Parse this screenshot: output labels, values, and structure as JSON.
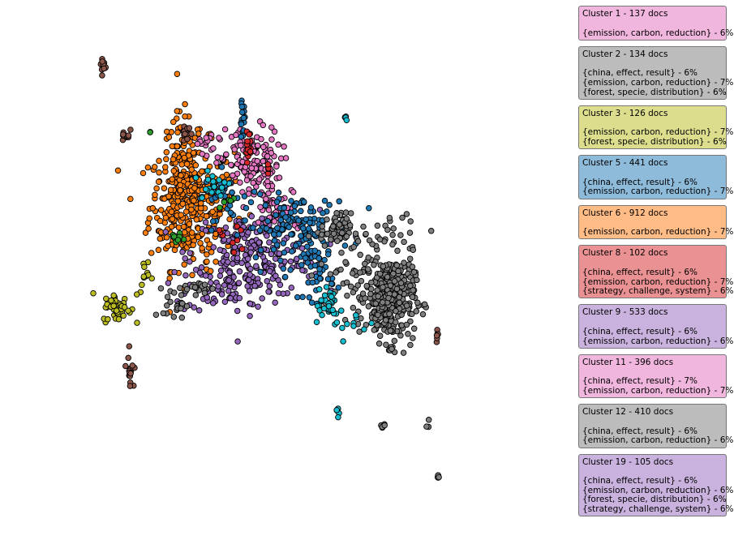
{
  "chart_data": {
    "type": "scatter",
    "title": "",
    "xlabel": "",
    "ylabel": "",
    "grid": false,
    "axes_visible": false,
    "xlim": [
      0,
      100
    ],
    "ylim": [
      0,
      100
    ],
    "legend_placement": "right",
    "point_style": {
      "size": 3.3,
      "edge_color": "#000000"
    },
    "cluster_colors": {
      "blue": "#1f77b4",
      "orange": "#ff7f0e",
      "green": "#2ca02c",
      "red": "#d62728",
      "purple": "#9467bd",
      "brown": "#8c564b",
      "pink": "#e377c2",
      "gray": "#7f7f7f",
      "olive": "#bcbd22",
      "cyan": "#17becf"
    },
    "clusters": [
      {
        "color": "orange",
        "n": 300,
        "cx": 26.8,
        "cy": 64.0,
        "sx": 4.2,
        "sy": 6.3
      },
      {
        "color": "orange",
        "n": 130,
        "cx": 24.9,
        "cy": 69.5,
        "sx": 2.2,
        "sy": 6.5
      },
      {
        "color": "purple",
        "n": 240,
        "cx": 39.6,
        "cy": 54.4,
        "sx": 6.3,
        "sy": 4.4
      },
      {
        "color": "purple",
        "n": 60,
        "cx": 34.4,
        "cy": 47.9,
        "sx": 4.2,
        "sy": 2.6
      },
      {
        "color": "pink",
        "n": 150,
        "cx": 38.5,
        "cy": 72.3,
        "sx": 3.0,
        "sy": 3.8
      },
      {
        "color": "pink",
        "n": 40,
        "cx": 44.4,
        "cy": 62.9,
        "sx": 2.7,
        "sy": 2.4
      },
      {
        "color": "pink",
        "n": 14,
        "cx": 29.4,
        "cy": 76.6,
        "sx": 0.8,
        "sy": 0.9
      },
      {
        "color": "blue",
        "n": 130,
        "cx": 47.9,
        "cy": 59.8,
        "sx": 5.4,
        "sy": 3.2
      },
      {
        "color": "blue",
        "n": 40,
        "cx": 52.1,
        "cy": 50.7,
        "sx": 1.5,
        "sy": 2.9
      },
      {
        "color": "blue",
        "n": 16,
        "cx": 36.9,
        "cy": 81.2,
        "sx": 0.3,
        "sy": 1.9
      },
      {
        "color": "blue",
        "n": 30,
        "cx": 33.3,
        "cy": 66.2,
        "sx": 2.0,
        "sy": 2.4
      },
      {
        "color": "gray",
        "n": 360,
        "cx": 66.3,
        "cy": 45.4,
        "sx": 2.4,
        "sy": 4.4
      },
      {
        "color": "gray",
        "n": 60,
        "cx": 55.5,
        "cy": 59.2,
        "sx": 1.5,
        "sy": 1.7
      },
      {
        "color": "gray",
        "n": 50,
        "cx": 59.4,
        "cy": 50.8,
        "sx": 3.6,
        "sy": 4.5
      },
      {
        "color": "gray",
        "n": 25,
        "cx": 23.4,
        "cy": 44.5,
        "sx": 1.1,
        "sy": 1.6
      },
      {
        "color": "gray",
        "n": 20,
        "cx": 28.2,
        "cy": 47.5,
        "sx": 1.6,
        "sy": 0.6
      },
      {
        "color": "gray",
        "n": 6,
        "cx": 64.8,
        "cy": 19.9,
        "sx": 0.2,
        "sy": 0.5
      },
      {
        "color": "gray",
        "n": 3,
        "cx": 73.9,
        "cy": 19.8,
        "sx": 0.2,
        "sy": 0.5
      },
      {
        "color": "gray",
        "n": 5,
        "cx": 75.8,
        "cy": 9.4,
        "sx": 0.1,
        "sy": 0.4
      },
      {
        "color": "gray",
        "n": 20,
        "cx": 69.6,
        "cy": 58.3,
        "sx": 3.3,
        "sy": 3.1
      },
      {
        "color": "cyan",
        "n": 30,
        "cx": 53.5,
        "cy": 44.7,
        "sx": 1.6,
        "sy": 2.4
      },
      {
        "color": "cyan",
        "n": 20,
        "cx": 31.0,
        "cy": 68.2,
        "sx": 1.9,
        "sy": 1.8
      },
      {
        "color": "cyan",
        "n": 4,
        "cx": 57.5,
        "cy": 81.8,
        "sx": 0.1,
        "sy": 0.4
      },
      {
        "color": "cyan",
        "n": 5,
        "cx": 55.9,
        "cy": 22.9,
        "sx": 0.2,
        "sy": 0.6
      },
      {
        "color": "cyan",
        "n": 10,
        "cx": 60.0,
        "cy": 40.0,
        "sx": 1.8,
        "sy": 1.5
      },
      {
        "color": "olive",
        "n": 50,
        "cx": 12.0,
        "cy": 43.5,
        "sx": 1.4,
        "sy": 1.4
      },
      {
        "color": "olive",
        "n": 12,
        "cx": 18.0,
        "cy": 49.3,
        "sx": 1.2,
        "sy": 2.0
      },
      {
        "color": "brown",
        "n": 12,
        "cx": 9.2,
        "cy": 92.3,
        "sx": 0.3,
        "sy": 1.1
      },
      {
        "color": "brown",
        "n": 14,
        "cx": 25.7,
        "cy": 79.5,
        "sx": 0.4,
        "sy": 1.0
      },
      {
        "color": "brown",
        "n": 10,
        "cx": 13.7,
        "cy": 78.5,
        "sx": 0.4,
        "sy": 1.0
      },
      {
        "color": "brown",
        "n": 16,
        "cx": 14.6,
        "cy": 31.0,
        "sx": 0.4,
        "sy": 1.9
      },
      {
        "color": "brown",
        "n": 6,
        "cx": 75.8,
        "cy": 38.2,
        "sx": 0.4,
        "sy": 0.6
      },
      {
        "color": "red",
        "n": 14,
        "cx": 38.1,
        "cy": 76.2,
        "sx": 0.3,
        "sy": 1.6
      },
      {
        "color": "red",
        "n": 6,
        "cx": 42.0,
        "cy": 71.6,
        "sx": 0.1,
        "sy": 0.6
      },
      {
        "color": "red",
        "n": 10,
        "cx": 34.5,
        "cy": 58.0,
        "sx": 1.5,
        "sy": 2.5
      },
      {
        "color": "green",
        "n": 12,
        "cx": 23.8,
        "cy": 57.7,
        "sx": 1.1,
        "sy": 0.6
      },
      {
        "color": "green",
        "n": 6,
        "cx": 33.5,
        "cy": 65.0,
        "sx": 1.3,
        "sy": 1.2
      },
      {
        "color": "green",
        "n": 2,
        "cx": 18.6,
        "cy": 79.0,
        "sx": 0.1,
        "sy": 0.1
      }
    ],
    "legend": [
      {
        "title": "Cluster 1 - 137 docs",
        "bg": "#f0b6de",
        "topics": [
          "{emission, carbon, reduction} - 6%"
        ]
      },
      {
        "title": "Cluster 2 - 134 docs",
        "bg": "#bcbcbc",
        "topics": [
          "{china, effect, result} - 6%",
          "{emission, carbon, reduction} - 7%",
          "{forest, specie, distribution} - 6%"
        ]
      },
      {
        "title": "Cluster 3 - 126 docs",
        "bg": "#dcde8e",
        "topics": [
          "{emission, carbon, reduction} - 7%",
          "{forest, specie, distribution} - 6%"
        ]
      },
      {
        "title": "Cluster 5 - 441 docs",
        "bg": "#8ebbda",
        "topics": [
          "{china, effect, result} - 6%",
          "{emission, carbon, reduction} - 7%"
        ]
      },
      {
        "title": "Cluster 6 - 912 docs",
        "bg": "#ffbc86",
        "topics": [
          "{emission, carbon, reduction} - 7%"
        ]
      },
      {
        "title": "Cluster 8 - 102 docs",
        "bg": "#ea9293",
        "topics": [
          "{china, effect, result} - 6%",
          "{emission, carbon, reduction} - 7%",
          "{strategy, challenge, system} - 6%"
        ]
      },
      {
        "title": "Cluster 9 - 533 docs",
        "bg": "#c9b2dd",
        "topics": [
          "{china, effect, result} - 6%",
          "{emission, carbon, reduction} - 6%"
        ]
      },
      {
        "title": "Cluster 11 - 396 docs",
        "bg": "#f0b6de",
        "topics": [
          "{china, effect, result} - 7%",
          "{emission, carbon, reduction} - 7%"
        ]
      },
      {
        "title": "Cluster 12 - 410 docs",
        "bg": "#bcbcbc",
        "topics": [
          "{china, effect, result} - 6%",
          "{emission, carbon, reduction} - 6%"
        ]
      },
      {
        "title": "Cluster 19 - 105 docs",
        "bg": "#c9b2dd",
        "topics": [
          "{china, effect, result} - 6%",
          "{emission, carbon, reduction} - 6%",
          "{forest, specie, distribution} - 6%",
          "{strategy, challenge, system} - 6%"
        ]
      }
    ]
  }
}
